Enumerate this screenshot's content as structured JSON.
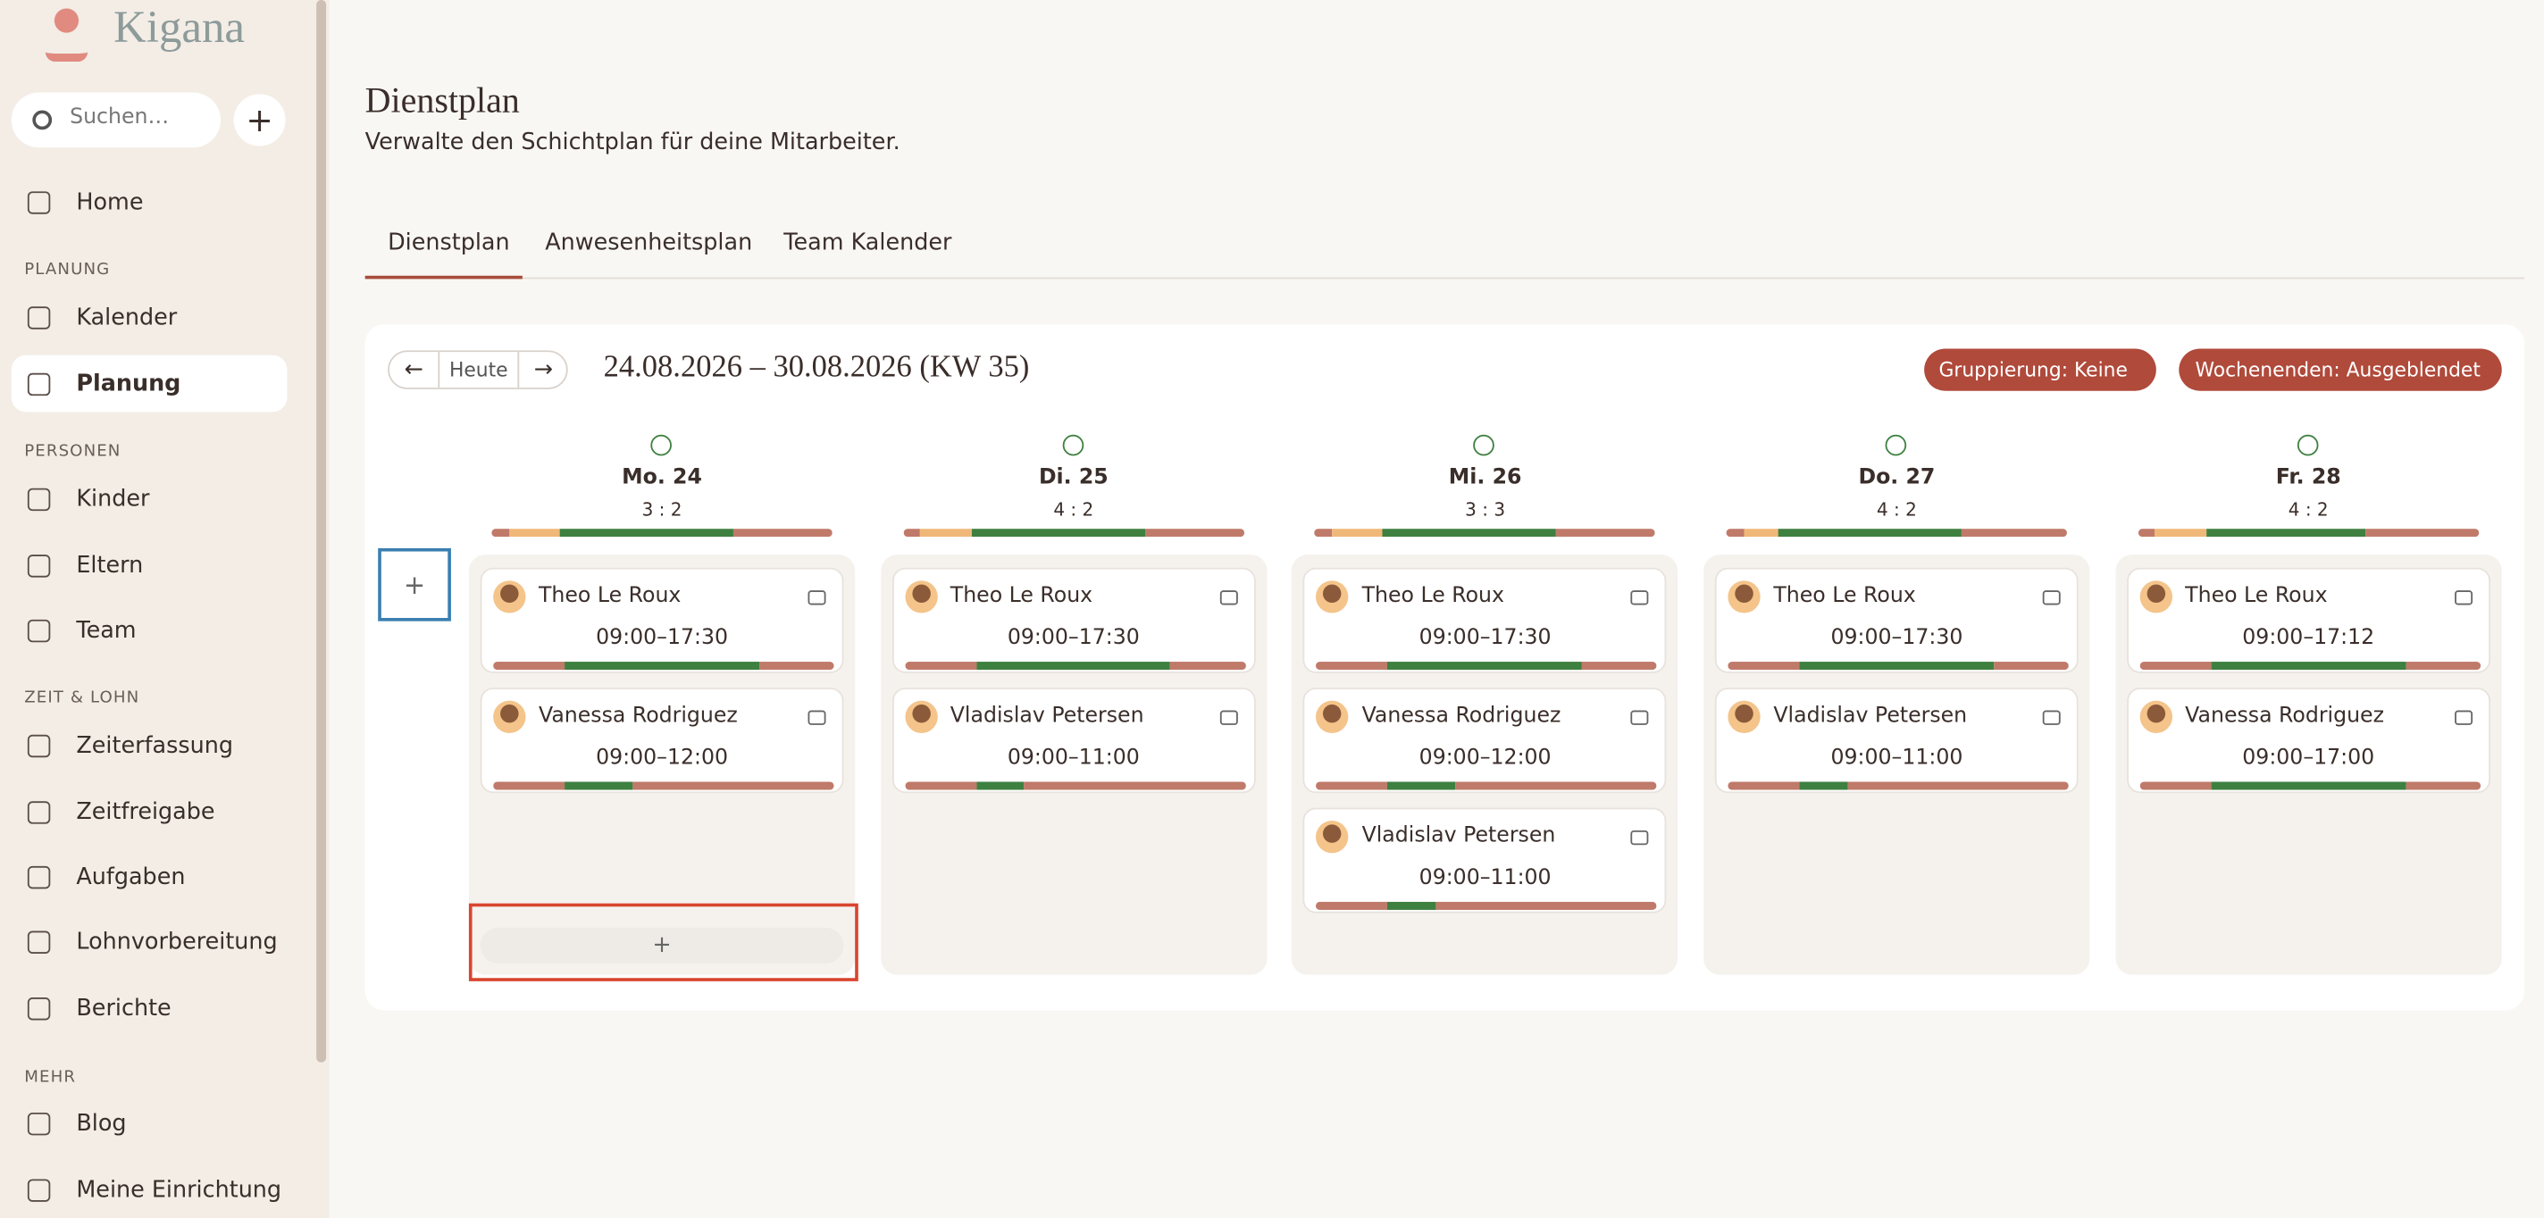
{
  "sidebar": {
    "logo": "Kigana",
    "search_placeholder": "Suchen…",
    "add_button": "+",
    "top_items": [
      "Home"
    ],
    "sections": [
      {
        "heading": "PLANUNG",
        "items": [
          "Kalender",
          "Planung"
        ]
      },
      {
        "heading": "PERSONEN",
        "items": [
          "Kinder",
          "Eltern",
          "Team"
        ]
      },
      {
        "heading": "ZEIT & LOHN",
        "items": [
          "Zeiterfassung",
          "Zeitfreigabe",
          "Aufgaben",
          "Lohnvorbereitung",
          "Berichte"
        ]
      },
      {
        "heading": "MEHR",
        "items": [
          "Blog",
          "Meine Einrichtung"
        ]
      }
    ]
  },
  "header": {
    "title": "Dienstplan",
    "subtitle": "Verwalte den Schichtplan für deine Mitarbeiter."
  },
  "tabs": [
    "Dienstplan",
    "Anwesenheitsplan",
    "Team Kalender"
  ],
  "toolbar": {
    "prev": "←",
    "today": "Heute",
    "next": "→",
    "range": "24.08.2026 – 30.08.2026 (KW 35)",
    "grouping": "Gruppierung: Keine",
    "weekends": "Wochenenden: Ausgeblendet"
  },
  "roster": {
    "add_row": "+",
    "add_shift": "+",
    "days": [
      {
        "label": "Mo. 24",
        "ratio": "3 : 2",
        "shifts": [
          {
            "name": "Theo Le Roux",
            "time": "09:00–17:30"
          },
          {
            "name": "Vanessa Rodriguez",
            "time": "09:00–12:00"
          }
        ]
      },
      {
        "label": "Di. 25",
        "ratio": "4 : 2",
        "shifts": [
          {
            "name": "Theo Le Roux",
            "time": "09:00–17:30"
          },
          {
            "name": "Vladislav Petersen",
            "time": "09:00–11:00"
          }
        ]
      },
      {
        "label": "Mi. 26",
        "ratio": "3 : 3",
        "shifts": [
          {
            "name": "Theo Le Roux",
            "time": "09:00–17:30"
          },
          {
            "name": "Vanessa Rodriguez",
            "time": "09:00–12:00"
          },
          {
            "name": "Vladislav Petersen",
            "time": "09:00–11:00"
          }
        ]
      },
      {
        "label": "Do. 27",
        "ratio": "4 : 2",
        "shifts": [
          {
            "name": "Theo Le Roux",
            "time": "09:00–17:30"
          },
          {
            "name": "Vladislav Petersen",
            "time": "09:00–11:00"
          }
        ]
      },
      {
        "label": "Fr. 28",
        "ratio": "4 : 2",
        "shifts": [
          {
            "name": "Theo Le Roux",
            "time": "09:00–17:12"
          },
          {
            "name": "Vanessa Rodriguez",
            "time": "09:00–17:00"
          }
        ]
      }
    ]
  }
}
